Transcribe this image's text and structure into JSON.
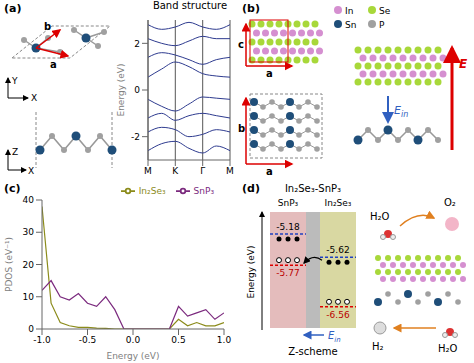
{
  "chart_data": [
    {
      "type": "line",
      "title": "Band structure",
      "y_label": "Energy (eV)",
      "x": [
        0,
        0.167,
        0.333,
        0.5,
        0.667,
        0.833,
        1
      ],
      "xlim": [
        0,
        1
      ],
      "xticks": [
        {
          "value": 0,
          "label": "M"
        },
        {
          "value": 0.333,
          "label": "K"
        },
        {
          "value": 0.667,
          "label": "Γ"
        },
        {
          "value": 1,
          "label": "M"
        }
      ],
      "ylim": [
        -3,
        3
      ],
      "yticks": [
        -2,
        0,
        2
      ],
      "grid": true,
      "color": "#2e3b8f",
      "series": [
        {
          "values": [
            0.55,
            0.9,
            1.2,
            1.0,
            0.7,
            0.6,
            0.55
          ]
        },
        {
          "values": [
            1.4,
            1.6,
            1.5,
            1.3,
            1.1,
            1.3,
            1.4
          ]
        },
        {
          "values": [
            2.2,
            2.0,
            1.9,
            2.1,
            2.3,
            2.2,
            2.2
          ]
        },
        {
          "values": [
            2.8,
            2.6,
            2.7,
            2.9,
            2.7,
            2.6,
            2.8
          ]
        },
        {
          "values": [
            -0.4,
            -0.7,
            -0.9,
            -0.6,
            -0.3,
            -0.35,
            -0.4
          ]
        },
        {
          "values": [
            -1.2,
            -1.0,
            -1.3,
            -1.1,
            -1.0,
            -1.1,
            -1.2
          ]
        },
        {
          "values": [
            -1.8,
            -1.6,
            -1.7,
            -2.0,
            -1.9,
            -1.7,
            -1.8
          ]
        },
        {
          "values": [
            -2.6,
            -2.3,
            -2.2,
            -2.5,
            -2.7,
            -2.4,
            -2.6
          ]
        }
      ]
    },
    {
      "type": "line",
      "x_label": "Energy (eV)",
      "y_label": "PDOS (eV⁻¹)",
      "x": [
        -1.0,
        -0.9,
        -0.8,
        -0.7,
        -0.6,
        -0.5,
        -0.4,
        -0.3,
        -0.2,
        -0.1,
        0.0,
        0.1,
        0.2,
        0.3,
        0.4,
        0.5,
        0.6,
        0.7,
        0.8,
        0.9,
        1.0
      ],
      "xlim": [
        -1,
        1
      ],
      "xticks": [
        {
          "value": -1,
          "label": "-1.0"
        },
        {
          "value": -0.5,
          "label": "-0.5"
        },
        {
          "value": 0,
          "label": "0.0"
        },
        {
          "value": 0.5,
          "label": "0.5"
        },
        {
          "value": 1,
          "label": "1.0"
        }
      ],
      "ylim": [
        0,
        40
      ],
      "yticks": [
        0,
        10,
        20,
        30,
        40
      ],
      "legend": "top right",
      "series": [
        {
          "name": "In₂Se₃",
          "color": "#8b8b1a",
          "values": [
            38,
            8,
            2,
            1,
            0.5,
            0.5,
            0.3,
            0.2,
            0,
            0,
            0,
            0,
            0,
            0,
            0,
            3,
            1,
            2,
            1,
            1,
            2
          ]
        },
        {
          "name": "SnP₃",
          "color": "#7b2a7e",
          "values": [
            12,
            15,
            10,
            9,
            11,
            8,
            7,
            10,
            6,
            0,
            0,
            0,
            0,
            0,
            0,
            7,
            4,
            5,
            6,
            3,
            5
          ]
        }
      ]
    }
  ],
  "panels": {
    "a": {
      "label": "(a)",
      "vectors": [
        "a",
        "b"
      ],
      "top_axes": {
        "vertical": "Y",
        "horizontal": "X"
      },
      "side_axes": {
        "vertical": "Z",
        "horizontal": "X"
      }
    },
    "b": {
      "label": "(b)",
      "species": [
        {
          "name": "In",
          "color": "#d58fd0"
        },
        {
          "name": "Se",
          "color": "#a8d83a"
        },
        {
          "name": "Sn",
          "color": "#1f4e79"
        },
        {
          "name": "P",
          "color": "#a0a0a0"
        }
      ],
      "top_vectors": {
        "vertical": "c",
        "horizontal": "a"
      },
      "bottom_vectors": {
        "vertical": "b",
        "horizontal": "a"
      },
      "field": "E",
      "internal_field": {
        "main": "E",
        "sub": "in"
      }
    },
    "c": {
      "label": "(c)"
    },
    "d": {
      "label": "(d)",
      "title": "In₂Se₃-SnP₃",
      "y_label": "Energy (eV)",
      "ylim": [
        -4.8,
        -7.0
      ],
      "materials": [
        {
          "name": "SnP₃",
          "cb": -5.18,
          "vb": -5.77,
          "color": "#d9a0a0"
        },
        {
          "name": "In₂Se₃",
          "cb": -5.62,
          "vb": -6.56,
          "color": "#c9c77a"
        }
      ],
      "scheme": "Z-scheme",
      "internal_field": {
        "main": "E",
        "sub": "in"
      },
      "molecules": {
        "top_left": "H₂O",
        "top_right": "O₂",
        "bottom_left": "H₂",
        "bottom_right": "H₂O"
      }
    }
  }
}
